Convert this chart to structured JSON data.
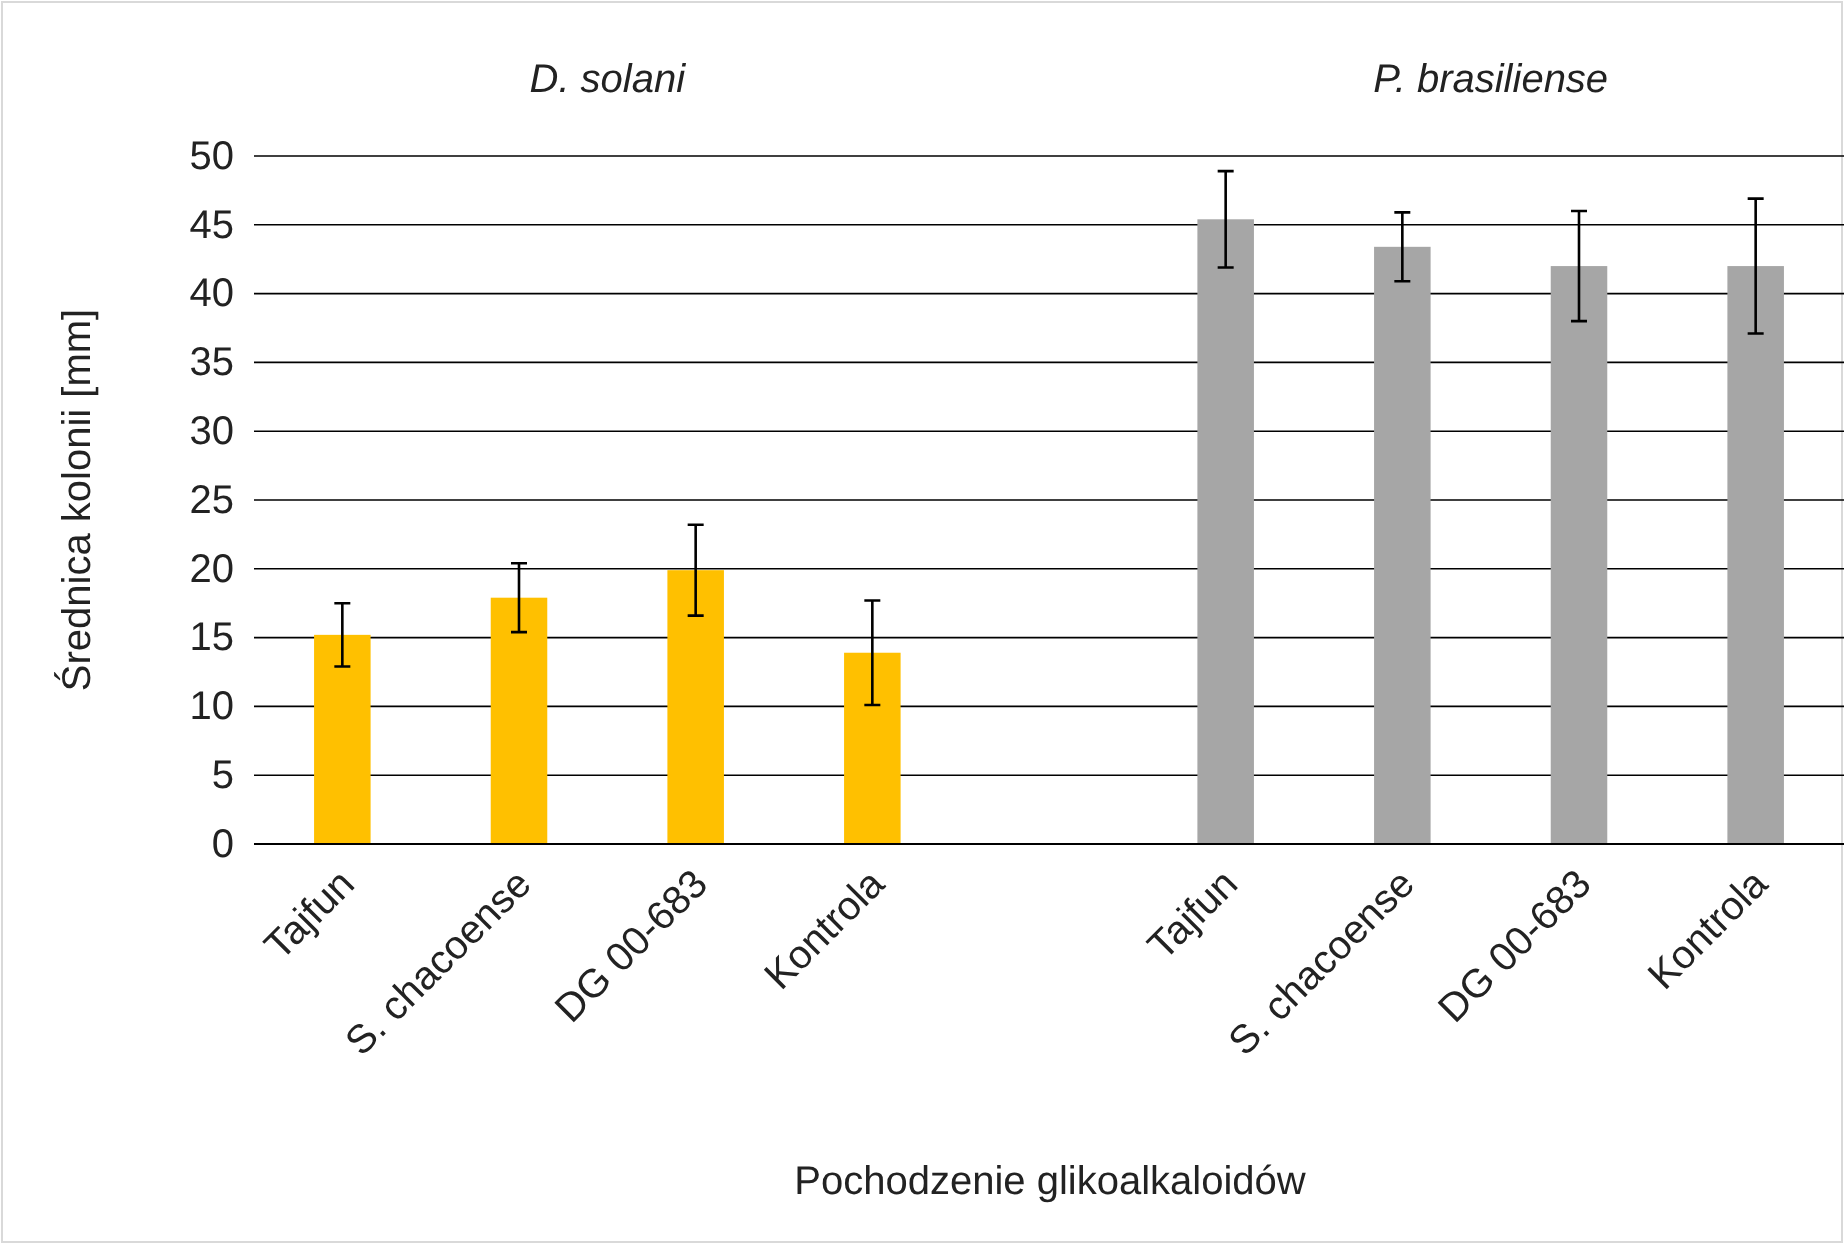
{
  "chart_data": {
    "type": "bar",
    "xlabel": "Pochodzenie glikoalkaloidów",
    "ylabel": "Średnica kolonii [mm]",
    "annotations": [
      "D. solani",
      "P. brasiliense"
    ],
    "categories": [
      "Tajfun",
      "S. chacoense",
      "DG 00-683",
      "Kontrola",
      null,
      "Tajfun",
      "S. chacoense",
      "DG 00-683",
      "Kontrola"
    ],
    "values": [
      15.2,
      17.9,
      19.9,
      13.9,
      null,
      45.4,
      43.4,
      42,
      42
    ],
    "errors": [
      2.3,
      2.5,
      3.3,
      3.8,
      null,
      3.5,
      2.5,
      4,
      4.9
    ],
    "colors": [
      "#ffc000",
      "#ffc000",
      "#ffc000",
      "#ffc000",
      null,
      "#a6a6a6",
      "#a6a6a6",
      "#a6a6a6",
      "#a6a6a6"
    ],
    "ylim": [
      0,
      50
    ],
    "yticks": [
      0,
      5,
      10,
      15,
      20,
      25,
      30,
      35,
      40,
      45,
      50
    ],
    "grid": "y"
  }
}
